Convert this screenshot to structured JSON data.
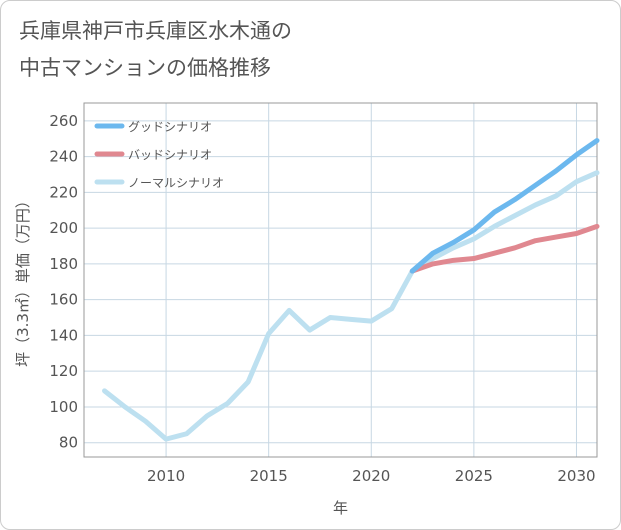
{
  "title_line1": "兵庫県神戸市兵庫区水木通の",
  "title_line2": "中古マンションの価格推移",
  "chart_data": {
    "type": "line",
    "title": "兵庫県神戸市兵庫区水木通の中古マンションの価格推移",
    "xlabel": "年",
    "ylabel": "坪（3.3㎡）単価（万円）",
    "xlim": [
      2006,
      2031
    ],
    "ylim": [
      72,
      270
    ],
    "x_ticks": [
      2010,
      2015,
      2020,
      2025,
      2030
    ],
    "y_ticks": [
      80,
      100,
      120,
      140,
      160,
      180,
      200,
      220,
      240,
      260
    ],
    "grid": true,
    "legend_position": "top-left",
    "series": [
      {
        "name": "グッドシナリオ",
        "color": "#6cb8ee",
        "x": [
          2022,
          2023,
          2024,
          2025,
          2026,
          2027,
          2028,
          2029,
          2030,
          2031
        ],
        "y": [
          176,
          186,
          192,
          199,
          209,
          216,
          224,
          232,
          241,
          249
        ]
      },
      {
        "name": "バッドシナリオ",
        "color": "#e08890",
        "x": [
          2022,
          2023,
          2024,
          2025,
          2026,
          2027,
          2028,
          2029,
          2030,
          2031
        ],
        "y": [
          176,
          180,
          182,
          183,
          186,
          189,
          193,
          195,
          197,
          201
        ]
      },
      {
        "name": "ノーマルシナリオ",
        "color": "#bde0f0",
        "x": [
          2007,
          2008,
          2009,
          2010,
          2011,
          2012,
          2013,
          2014,
          2015,
          2016,
          2017,
          2018,
          2019,
          2020,
          2021,
          2022,
          2023,
          2024,
          2025,
          2026,
          2027,
          2028,
          2029,
          2030,
          2031
        ],
        "y": [
          109,
          100,
          92,
          82,
          85,
          95,
          102,
          114,
          141,
          154,
          143,
          150,
          149,
          148,
          155,
          176,
          183,
          189,
          194,
          201,
          207,
          213,
          218,
          226,
          231
        ]
      }
    ]
  }
}
